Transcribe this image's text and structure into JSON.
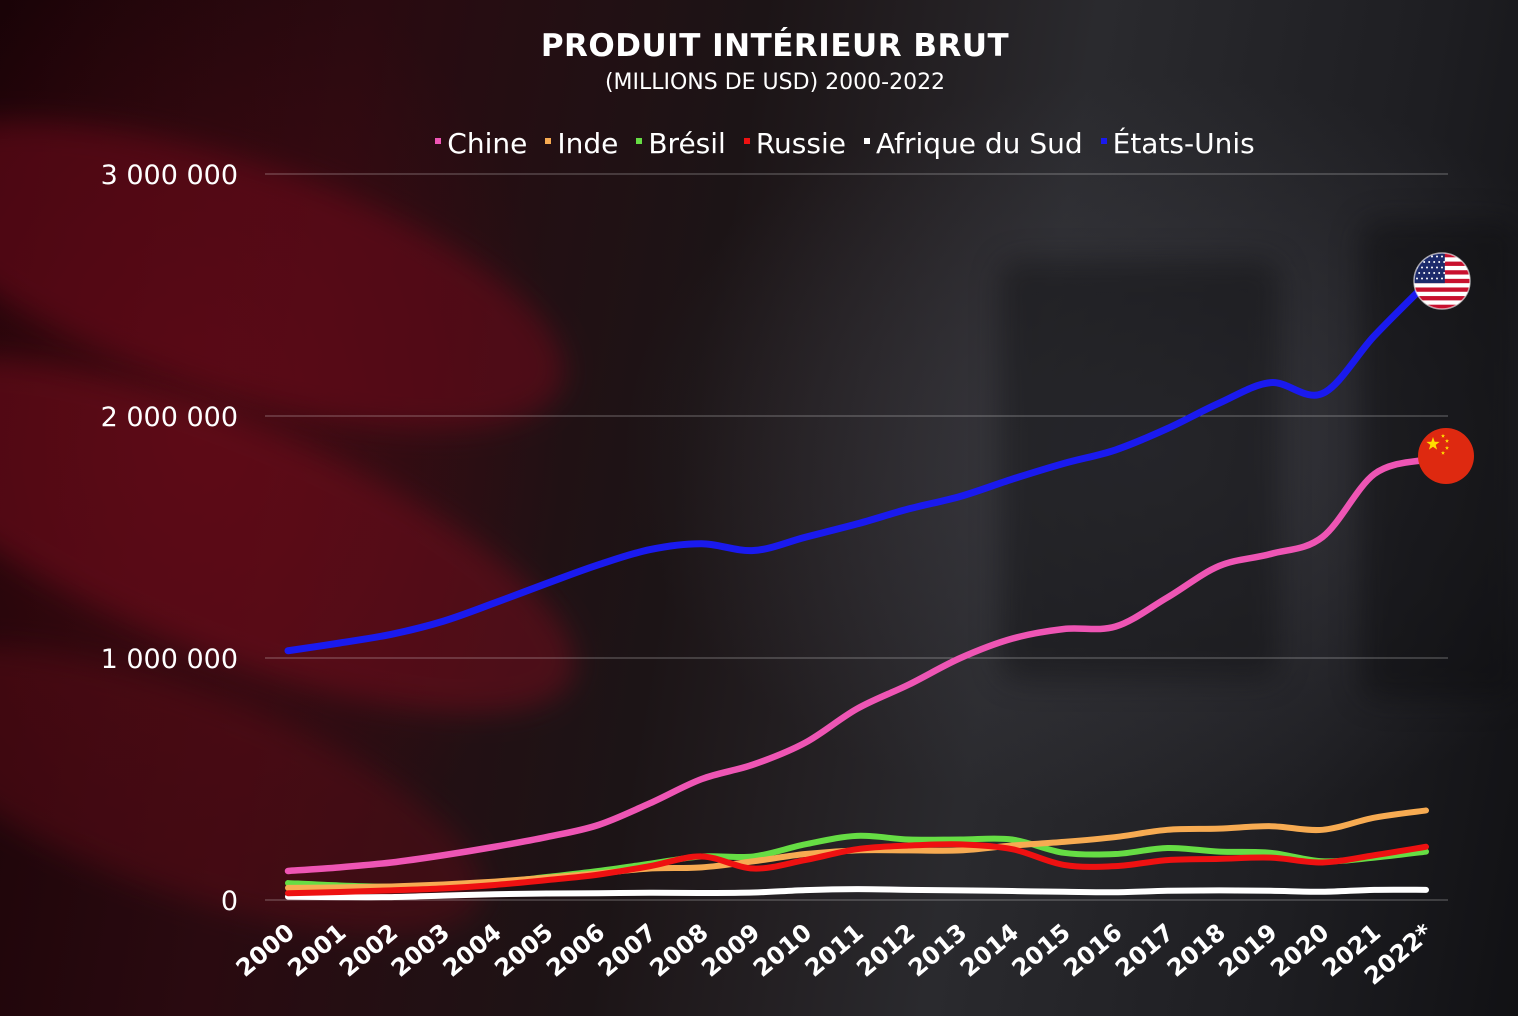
{
  "chart_data": {
    "type": "line",
    "title": "PRODUIT INTÉRIEUR BRUT",
    "subtitle": "(MILLIONS DE USD) 2000-2022",
    "ylim": [
      0,
      3000000
    ],
    "yticks": [
      {
        "value": 0,
        "label": "0"
      },
      {
        "value": 1000000,
        "label": "1 000 000"
      },
      {
        "value": 2000000,
        "label": "2 000 000"
      },
      {
        "value": 3000000,
        "label": "3 000 000"
      }
    ],
    "grid": true,
    "legend_position": "top",
    "categories": [
      "2000",
      "2001",
      "2002",
      "2003",
      "2004",
      "2005",
      "2006",
      "2007",
      "2008",
      "2009",
      "2010",
      "2011",
      "2012",
      "2013",
      "2014",
      "2015",
      "2016",
      "2017",
      "2018",
      "2019",
      "2020",
      "2021",
      "2022*"
    ],
    "series": [
      {
        "name": "Chine",
        "color": "#ee55b4",
        "values": [
          120000,
          135000,
          155000,
          185000,
          220000,
          260000,
          310000,
          400000,
          500000,
          560000,
          650000,
          790000,
          890000,
          1000000,
          1080000,
          1120000,
          1130000,
          1250000,
          1380000,
          1430000,
          1500000,
          1760000,
          1820000
        ]
      },
      {
        "name": "Inde",
        "color": "#f7ab52",
        "values": [
          50000,
          52000,
          56000,
          64000,
          76000,
          92000,
          110000,
          130000,
          135000,
          160000,
          190000,
          205000,
          205000,
          205000,
          225000,
          240000,
          260000,
          290000,
          295000,
          305000,
          290000,
          340000,
          370000
        ]
      },
      {
        "name": "Brésil",
        "color": "#66dd44",
        "values": [
          70000,
          60000,
          55000,
          60000,
          72000,
          95000,
          120000,
          150000,
          180000,
          180000,
          230000,
          265000,
          250000,
          250000,
          250000,
          195000,
          190000,
          215000,
          200000,
          195000,
          160000,
          175000,
          200000
        ]
      },
      {
        "name": "Russie",
        "color": "#ee1111",
        "values": [
          28000,
          33000,
          40000,
          48000,
          62000,
          82000,
          105000,
          140000,
          180000,
          130000,
          165000,
          210000,
          225000,
          230000,
          210000,
          145000,
          140000,
          165000,
          170000,
          175000,
          155000,
          185000,
          220000
        ]
      },
      {
        "name": "Afrique du Sud",
        "color": "#ffffff",
        "values": [
          14000,
          12000,
          12000,
          18000,
          24000,
          27000,
          28000,
          30000,
          29000,
          31000,
          41000,
          45000,
          42000,
          40000,
          37000,
          34000,
          32000,
          38000,
          40000,
          38000,
          34000,
          42000,
          42000
        ]
      },
      {
        "name": "États-Unis",
        "color": "#1a1aee",
        "values": [
          1030000,
          1062000,
          1098000,
          1152000,
          1228000,
          1308000,
          1385000,
          1448000,
          1472000,
          1444000,
          1499000,
          1554000,
          1616000,
          1668000,
          1739000,
          1804000,
          1860000,
          1948000,
          2053000,
          2138000,
          2093000,
          2331000,
          2546000
        ]
      }
    ]
  }
}
